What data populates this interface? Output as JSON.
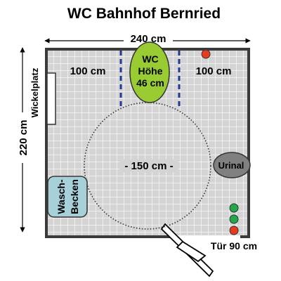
{
  "title": "WC Bahnhof Bernried",
  "dimensions": {
    "width": "240 cm",
    "height": "220 cm",
    "clear_left": "100 cm",
    "clear_right": "100 cm",
    "turning_circle": "- 150 cm -",
    "door": "Tür 90 cm"
  },
  "fixtures": {
    "wc": [
      "WC",
      "Höhe",
      "46 cm"
    ],
    "urinal": "Urinal",
    "wickelplatz": "Wickelplatz",
    "washbasin": [
      "Wasch-",
      "Becken"
    ]
  },
  "colors": {
    "floor": "#d4d4d4",
    "grid_line": "#ffffff",
    "wall": "#3a3a3a",
    "wc_fill": "#99cc33",
    "urinal_fill": "#808080",
    "basin_fill": "#a8d0d8",
    "dot_red": "#e63b1e",
    "dot_green": "#22a84a",
    "guide_blue": "#1f3a93"
  }
}
